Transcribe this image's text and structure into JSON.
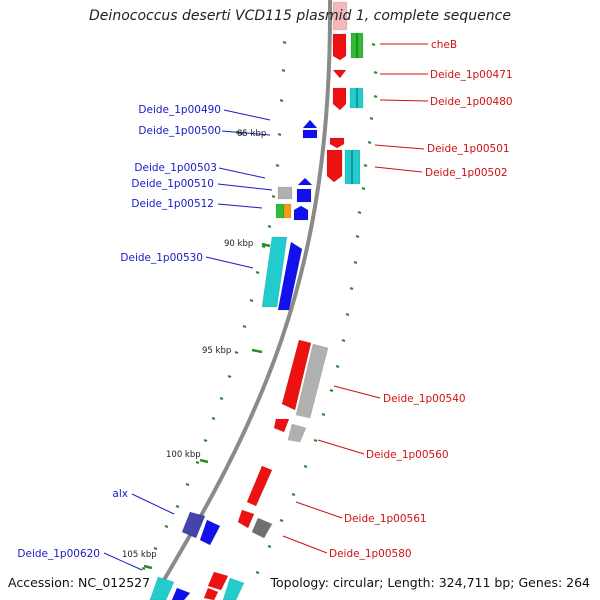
{
  "title": "Deinococcus deserti VCD115 plasmid 1, complete sequence",
  "footer": {
    "accession": "Accession: NC_012527",
    "topology": "Topology: circular; Length: 324,711 bp; Genes: 264"
  },
  "colors": {
    "backbone": "#8a8a8a",
    "tick": "#2a8a2a",
    "label_plus": "#1a1ac8",
    "label_minus": "#d01010",
    "red": "#ee1111",
    "blue": "#1111ee",
    "cyan": "#22cccc",
    "green": "#33bb33",
    "gray": "#b0b0b0",
    "orange": "#f39c1a",
    "navy": "#4444aa",
    "darkgray": "#707070",
    "pink": "#f5b8b8"
  },
  "scale_labels": [
    "85 kbp",
    "90 kbp",
    "95 kbp",
    "100 kbp",
    "105 kbp"
  ],
  "gene_labels_left": [
    "Deide_1p00490",
    "Deide_1p00500",
    "Deide_1p00503",
    "Deide_1p00510",
    "Deide_1p00512",
    "Deide_1p00530",
    "alx",
    "Deide_1p00620"
  ],
  "gene_labels_right": [
    "cheB",
    "Deide_1p00471",
    "Deide_1p00480",
    "Deide_1p00501",
    "Deide_1p00502",
    "Deide_1p00540",
    "Deide_1p00560",
    "Deide_1p00561",
    "Deide_1p00580"
  ]
}
